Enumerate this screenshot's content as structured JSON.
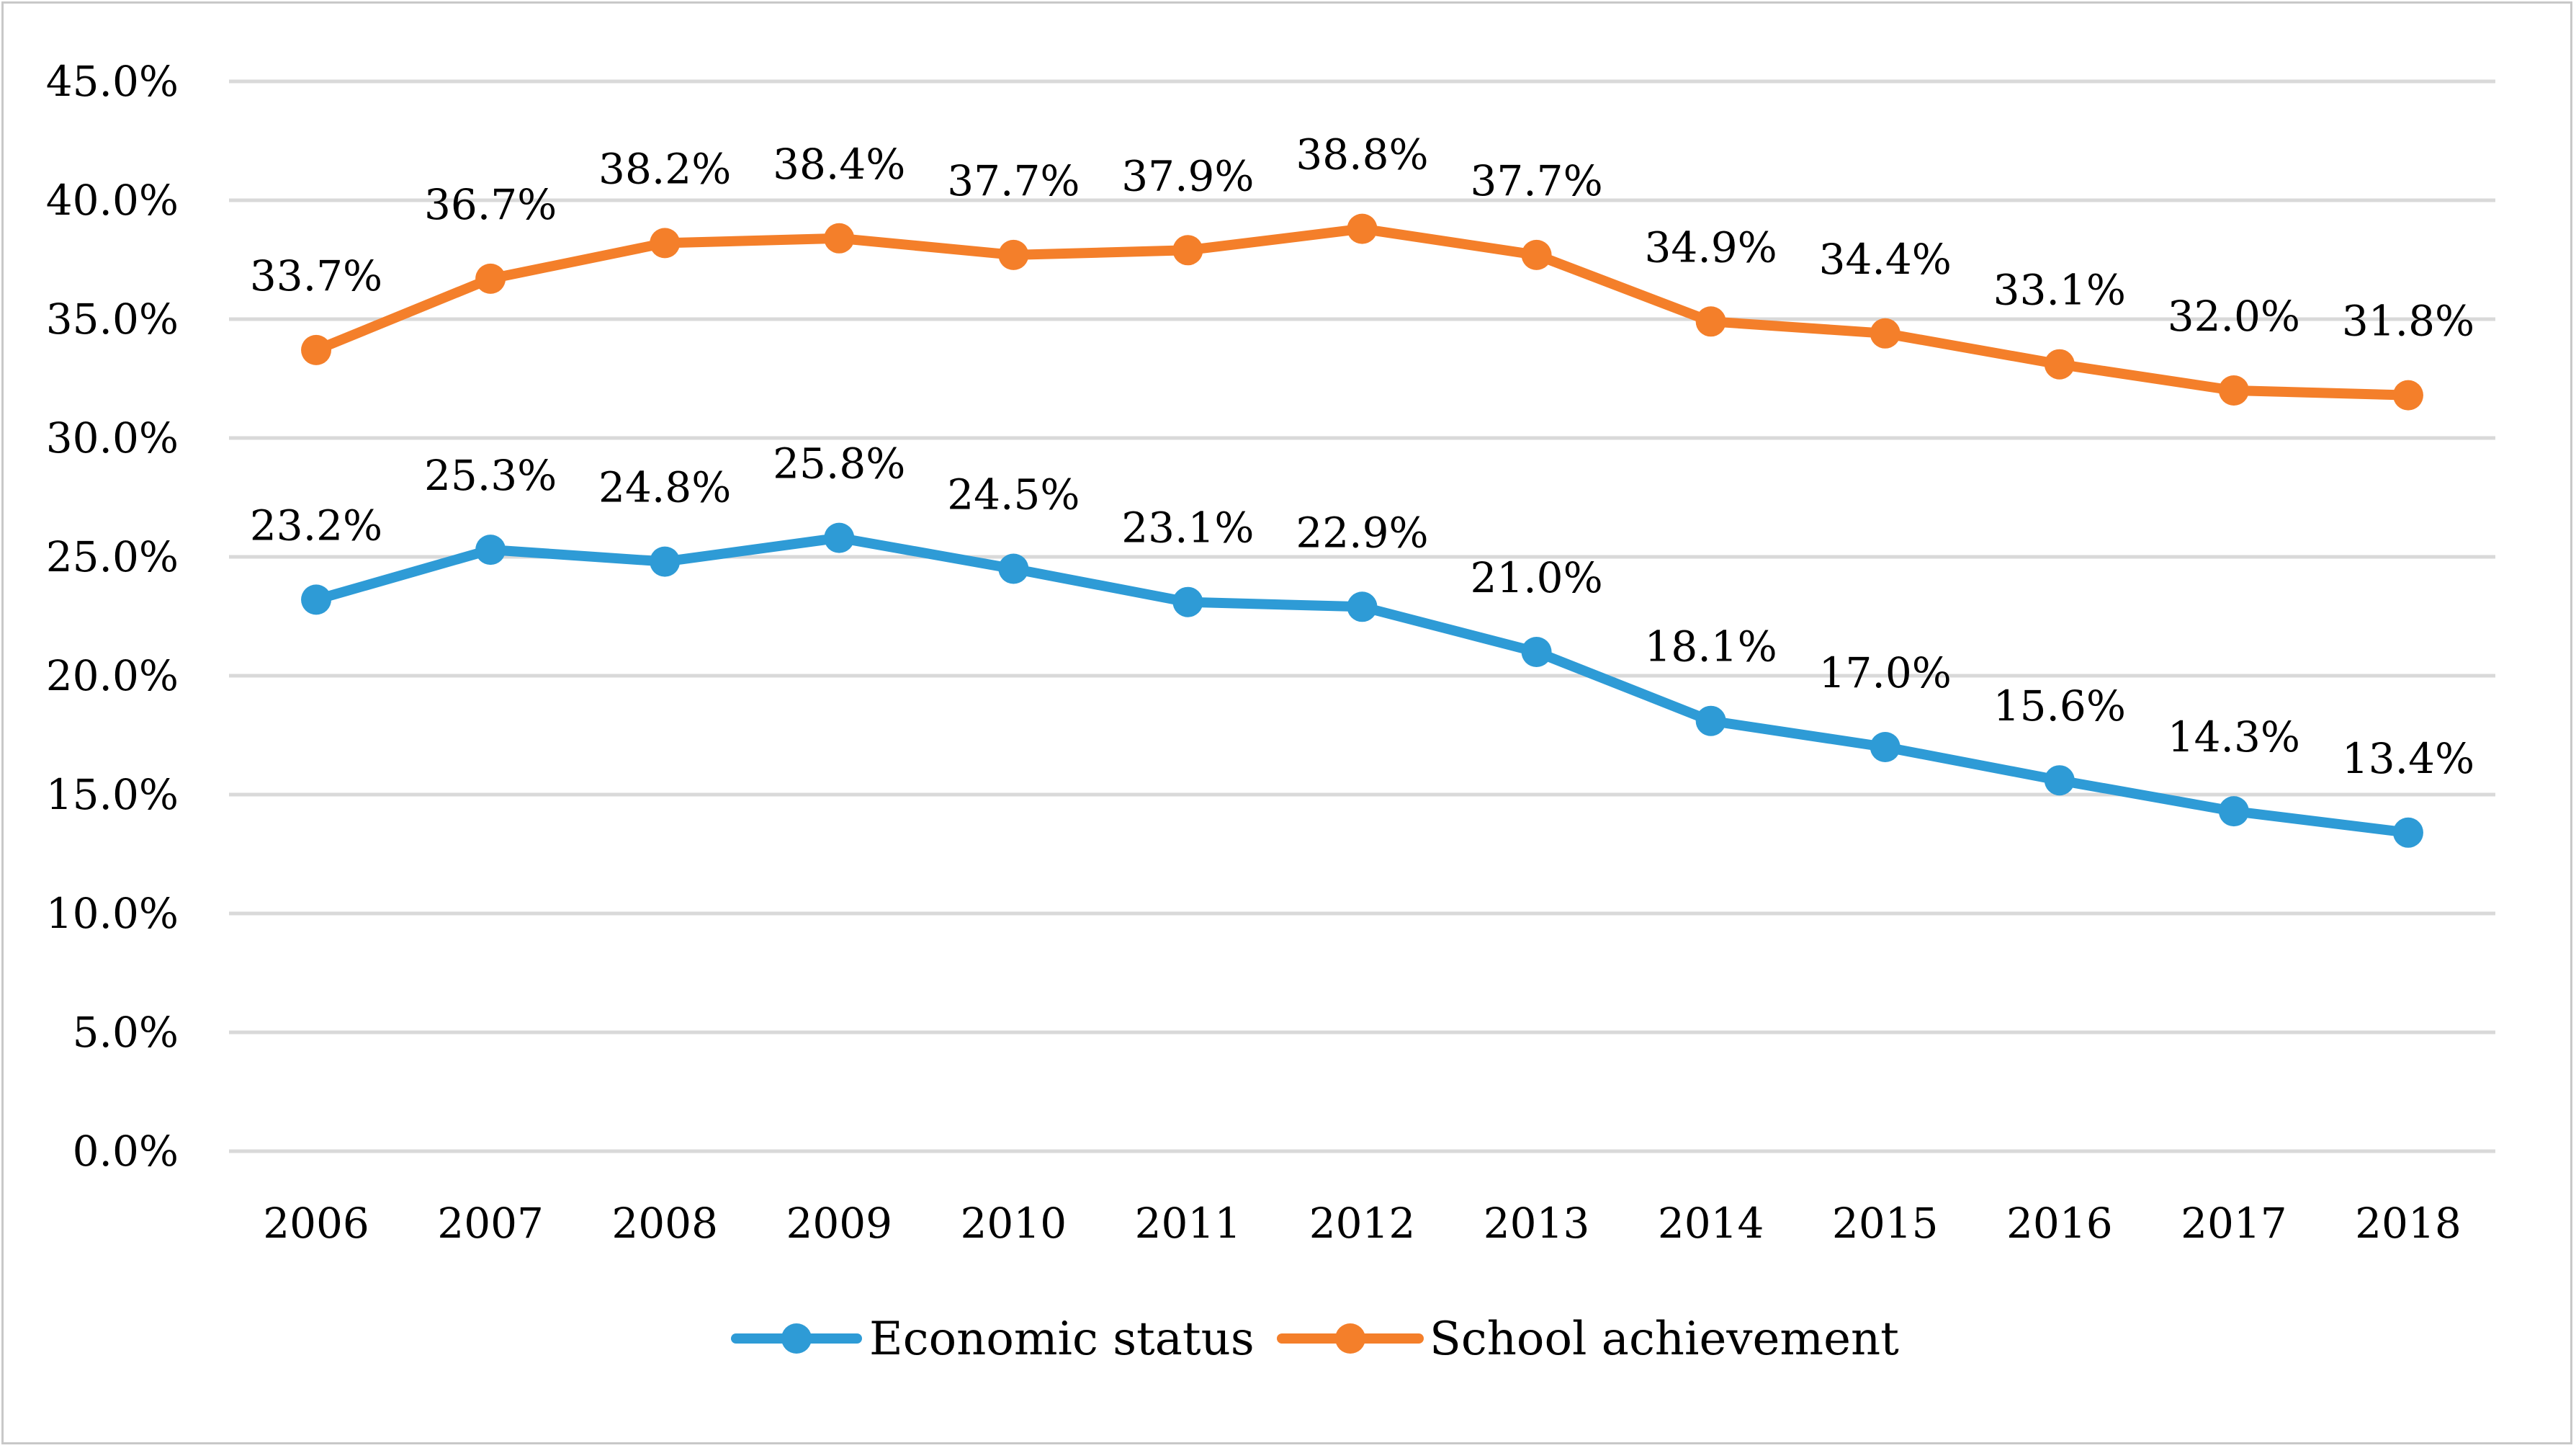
{
  "chart_data": {
    "type": "line",
    "title": "",
    "xlabel": "",
    "ylabel": "",
    "categories": [
      "2006",
      "2007",
      "2008",
      "2009",
      "2010",
      "2011",
      "2012",
      "2013",
      "2014",
      "2015",
      "2016",
      "2017",
      "2018"
    ],
    "ylim": [
      0,
      45
    ],
    "yticks": [
      0,
      5,
      10,
      15,
      20,
      25,
      30,
      35,
      40,
      45
    ],
    "ytick_labels": [
      "0.0%",
      "5.0%",
      "10.0%",
      "15.0%",
      "20.0%",
      "25.0%",
      "30.0%",
      "35.0%",
      "40.0%",
      "45.0%"
    ],
    "grid": true,
    "legend_position": "bottom",
    "series": [
      {
        "name": "Economic status",
        "color": "#2e9bd6",
        "values": [
          23.2,
          25.3,
          24.8,
          25.8,
          24.5,
          23.1,
          22.9,
          21.0,
          18.1,
          17.0,
          15.6,
          14.3,
          13.4
        ],
        "labels": [
          "23.2%",
          "25.3%",
          "24.8%",
          "25.8%",
          "24.5%",
          "23.1%",
          "22.9%",
          "21.0%",
          "18.1%",
          "17.0%",
          "15.6%",
          "14.3%",
          "13.4%"
        ]
      },
      {
        "name": "School achievement",
        "color": "#f47f2a",
        "values": [
          33.7,
          36.7,
          38.2,
          38.4,
          37.7,
          37.9,
          38.8,
          37.7,
          34.9,
          34.4,
          33.1,
          32.0,
          31.8
        ],
        "labels": [
          "33.7%",
          "36.7%",
          "38.2%",
          "38.4%",
          "37.7%",
          "37.9%",
          "38.8%",
          "37.7%",
          "34.9%",
          "34.4%",
          "33.1%",
          "32.0%",
          "31.8%"
        ]
      }
    ]
  }
}
